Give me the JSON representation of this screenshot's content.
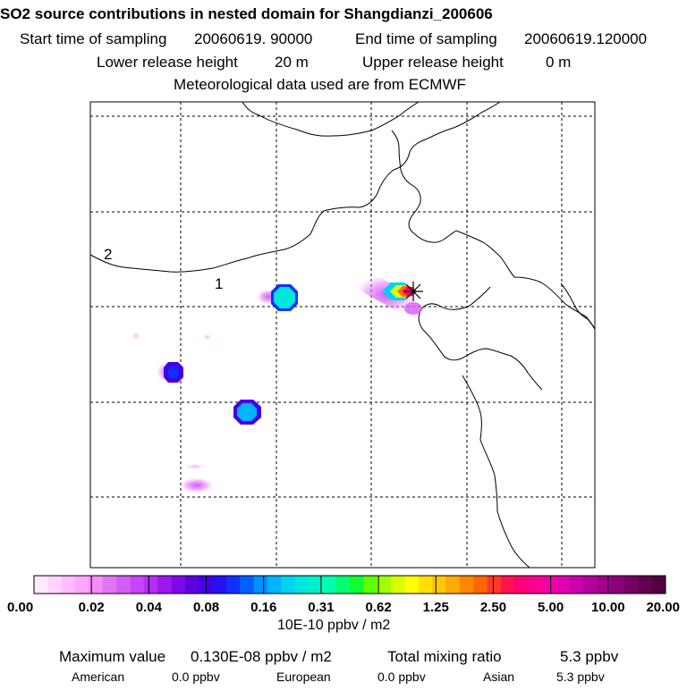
{
  "header": {
    "title": "SO2 source contributions in nested domain for Shangdianzi_200606",
    "start_label": "Start time of sampling",
    "start_value": "20060619. 90000",
    "end_label": "End time of sampling",
    "end_value": "20060619.120000",
    "lower_label": "Lower release height",
    "lower_value": "20 m",
    "upper_label": "Upper release height",
    "upper_value": "0 m",
    "met_line": "Meteorological data used are from ECMWF"
  },
  "map": {
    "region_labels": [
      "1",
      "2"
    ],
    "receptor_symbol": "star"
  },
  "colorbar": {
    "tick_labels": [
      "0.00",
      "0.02",
      "0.04",
      "0.08",
      "0.16",
      "0.31",
      "0.62",
      "1.25",
      "2.50",
      "5.00",
      "10.00",
      "20.00"
    ],
    "unit": "10E-10 ppbv / m2",
    "colors": [
      "#ffe9ff",
      "#ffd4ff",
      "#ffbcff",
      "#ffa6ff",
      "#f38df5",
      "#e373f5",
      "#d65cf8",
      "#c845ff",
      "#b52ef5",
      "#9b18ef",
      "#7f08e8",
      "#6000e0",
      "#4400e6",
      "#2810f0",
      "#1030ff",
      "#0060ff",
      "#0090ff",
      "#00b4ff",
      "#00d2f0",
      "#00e6dc",
      "#00f0cc",
      "#00ffaa",
      "#00ff70",
      "#10ff30",
      "#60ff00",
      "#a0ff00",
      "#d6ff00",
      "#ffff00",
      "#ffe000",
      "#ffc800",
      "#ffaa00",
      "#ff8800",
      "#ff6600",
      "#ff3a28",
      "#ff1450",
      "#ff0078",
      "#ff0090",
      "#f000a8",
      "#e000b0",
      "#cc00b0",
      "#b4009c",
      "#a0008c",
      "#8c0078",
      "#780064",
      "#640050",
      "#500040"
    ]
  },
  "footer": {
    "max_label": "Maximum value",
    "max_value": "0.130E-08 ppbv / m2",
    "total_label": "Total mixing ratio",
    "total_value": "5.3 ppbv",
    "american_label": "American",
    "american_value": "0.0 ppbv",
    "european_label": "European",
    "european_value": "0.0 ppbv",
    "asian_label": "Asian",
    "asian_value": "5.3 ppbv"
  },
  "chart_data": {
    "type": "heatmap",
    "title": "SO2 source contributions in nested domain for Shangdianzi_200606",
    "units": "10E-10 ppbv / m2",
    "color_scale_ticks": [
      0.0,
      0.02,
      0.04,
      0.08,
      0.16,
      0.31,
      0.62,
      1.25,
      2.5,
      5.0,
      10.0,
      20.0
    ],
    "maximum_value": "0.130E-08 ppbv / m2",
    "total_mixing_ratio_ppbv": 5.3,
    "contributions_ppbv": {
      "American": 0.0,
      "European": 0.0,
      "Asian": 5.3
    },
    "grid": true,
    "grid_style": "dashed"
  }
}
